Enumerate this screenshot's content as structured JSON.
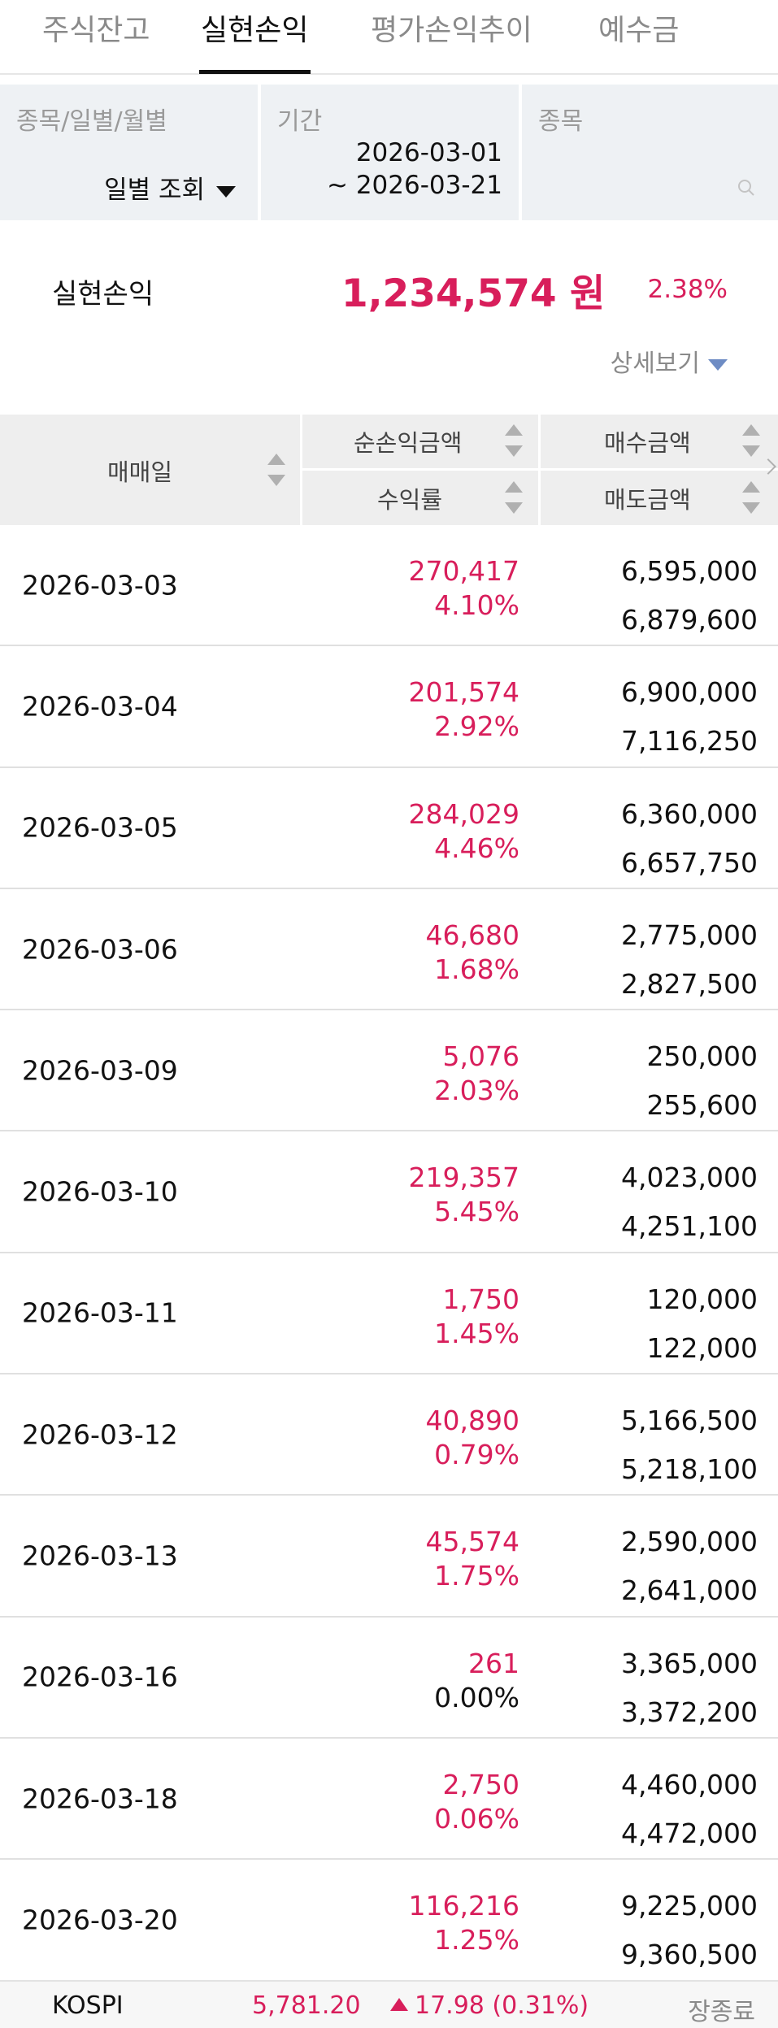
{
  "tabs": [
    {
      "label": "주식잔고",
      "active": false
    },
    {
      "label": "실현손익",
      "active": true
    },
    {
      "label": "평가손익추이",
      "active": false
    },
    {
      "label": "예수금",
      "active": false
    }
  ],
  "filters": {
    "view_label": "종목/일별/월별",
    "view_value": "일별 조회",
    "period_label": "기간",
    "period_start": "2026-03-01",
    "period_end": "~ 2026-03-21",
    "stock_label": "종목",
    "stock_value": ""
  },
  "summary": {
    "label": "실현손익",
    "amount": "1,234,574 원",
    "rate": "2.38%",
    "detail_label": "상세보기"
  },
  "table": {
    "headers": {
      "date": "매매일",
      "net_pl": "순손익금액",
      "rate": "수익률",
      "buy_amount": "매수금액",
      "sell_amount": "매도금액"
    },
    "rows": [
      {
        "date": "2026-03-03",
        "pl": "270,417",
        "rate": "4.10%",
        "buy": "6,595,000",
        "sell": "6,879,600"
      },
      {
        "date": "2026-03-04",
        "pl": "201,574",
        "rate": "2.92%",
        "buy": "6,900,000",
        "sell": "7,116,250"
      },
      {
        "date": "2026-03-05",
        "pl": "284,029",
        "rate": "4.46%",
        "buy": "6,360,000",
        "sell": "6,657,750"
      },
      {
        "date": "2026-03-06",
        "pl": "46,680",
        "rate": "1.68%",
        "buy": "2,775,000",
        "sell": "2,827,500"
      },
      {
        "date": "2026-03-09",
        "pl": "5,076",
        "rate": "2.03%",
        "buy": "250,000",
        "sell": "255,600"
      },
      {
        "date": "2026-03-10",
        "pl": "219,357",
        "rate": "5.45%",
        "buy": "4,023,000",
        "sell": "4,251,100"
      },
      {
        "date": "2026-03-11",
        "pl": "1,750",
        "rate": "1.45%",
        "buy": "120,000",
        "sell": "122,000"
      },
      {
        "date": "2026-03-12",
        "pl": "40,890",
        "rate": "0.79%",
        "buy": "5,166,500",
        "sell": "5,218,100"
      },
      {
        "date": "2026-03-13",
        "pl": "45,574",
        "rate": "1.75%",
        "buy": "2,590,000",
        "sell": "2,641,000"
      },
      {
        "date": "2026-03-16",
        "pl": "261",
        "rate": "0.00%",
        "buy": "3,365,000",
        "sell": "3,372,200"
      },
      {
        "date": "2026-03-18",
        "pl": "2,750",
        "rate": "0.06%",
        "buy": "4,460,000",
        "sell": "4,472,000"
      },
      {
        "date": "2026-03-20",
        "pl": "116,216",
        "rate": "1.25%",
        "buy": "9,225,000",
        "sell": "9,360,500"
      }
    ]
  },
  "footer": {
    "index_name": "KOSPI",
    "index_value": "5,781.20",
    "change": "17.98 (0.31%)",
    "status": "장종료"
  },
  "colors": {
    "positive": "#d81e5b",
    "header_bg": "#eeeeee",
    "filter_bg": "#eef1f4",
    "accent_arrow": "#6e8cc4"
  }
}
